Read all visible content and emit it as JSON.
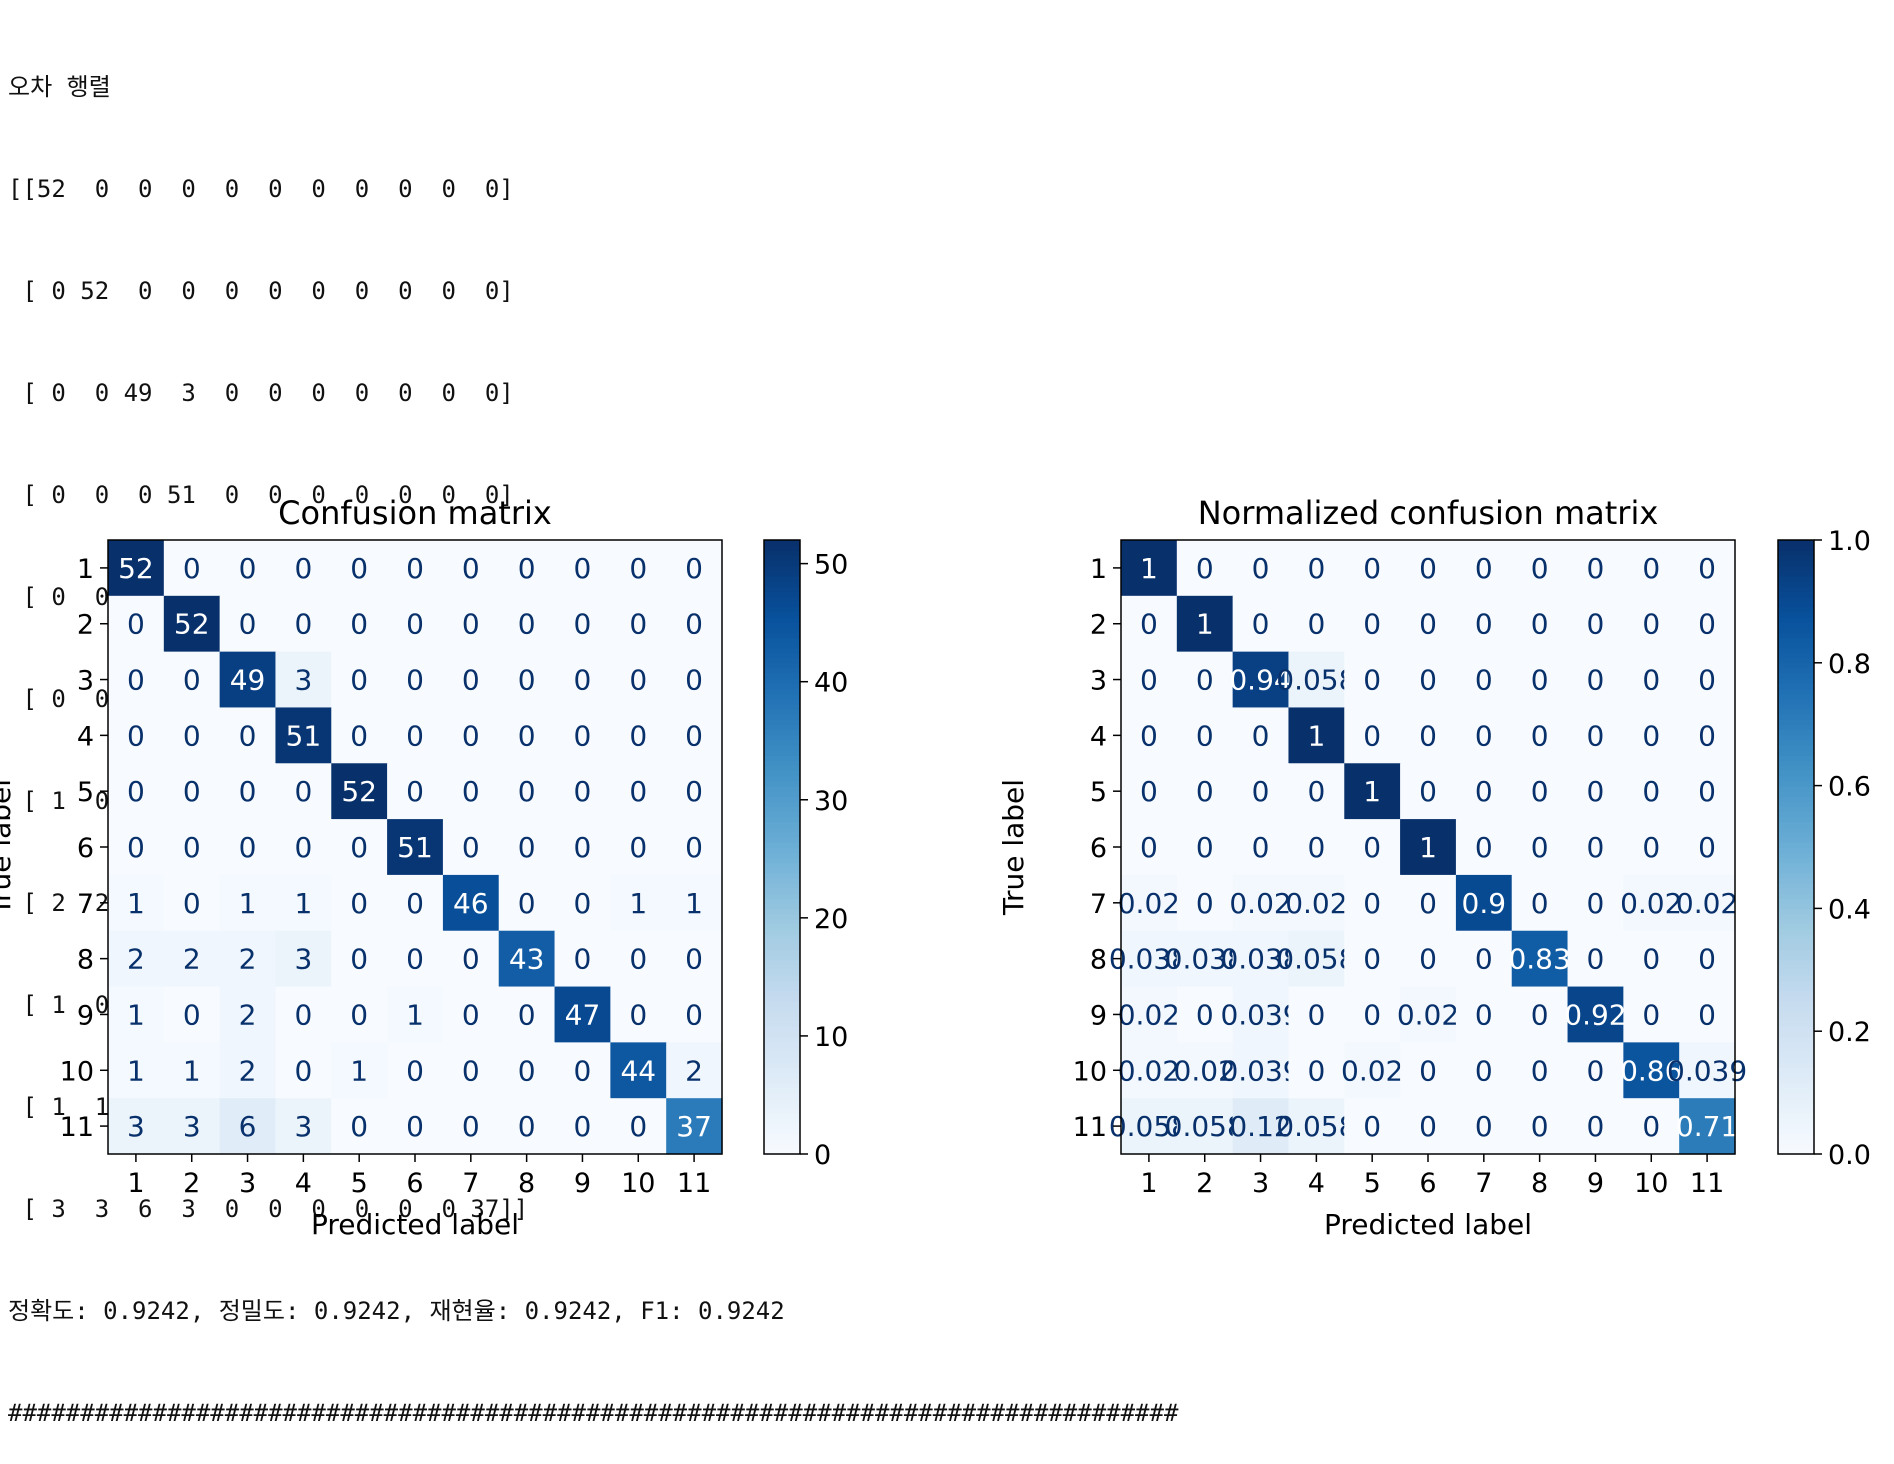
{
  "console": {
    "heading": "오차 행렬",
    "matrix_lines": [
      "[[52  0  0  0  0  0  0  0  0  0  0]",
      " [ 0 52  0  0  0  0  0  0  0  0  0]",
      " [ 0  0 49  3  0  0  0  0  0  0  0]",
      " [ 0  0  0 51  0  0  0  0  0  0  0]",
      " [ 0  0  0  0 52  0  0  0  0  0  0]",
      " [ 0  0  0  0  0 51  0  0  0  0  0]",
      " [ 1  0  1  1  0  0 46  0  0  1  1]",
      " [ 2  2  2  3  0  0  0 43  0  0  0]",
      " [ 1  0  2  0  0  1  0  0 47  0  0]",
      " [ 1  1  2  0  1  0  0  0  0 44  2]",
      " [ 3  3  6  3  0  0  0  0  0  0 37]]"
    ],
    "metrics_line": "정확도: 0.9242, 정밀도: 0.9242, 재현율: 0.9242, F1: 0.9242",
    "separator": "#################################################################################"
  },
  "chart_data": [
    {
      "type": "heatmap",
      "title": "Confusion matrix",
      "xlabel": "Predicted label",
      "ylabel": "True label",
      "x_categories": [
        "1",
        "2",
        "3",
        "4",
        "5",
        "6",
        "7",
        "8",
        "9",
        "10",
        "11"
      ],
      "y_categories": [
        "1",
        "2",
        "3",
        "4",
        "5",
        "6",
        "7",
        "8",
        "9",
        "10",
        "11"
      ],
      "colormap": "Blues",
      "colorbar_range": [
        0,
        52
      ],
      "colorbar_ticks": [
        0,
        10,
        20,
        30,
        40,
        50
      ],
      "colorbar_tick_labels": [
        "0",
        "10",
        "20",
        "30",
        "40",
        "50"
      ],
      "values": [
        [
          52,
          0,
          0,
          0,
          0,
          0,
          0,
          0,
          0,
          0,
          0
        ],
        [
          0,
          52,
          0,
          0,
          0,
          0,
          0,
          0,
          0,
          0,
          0
        ],
        [
          0,
          0,
          49,
          3,
          0,
          0,
          0,
          0,
          0,
          0,
          0
        ],
        [
          0,
          0,
          0,
          51,
          0,
          0,
          0,
          0,
          0,
          0,
          0
        ],
        [
          0,
          0,
          0,
          0,
          52,
          0,
          0,
          0,
          0,
          0,
          0
        ],
        [
          0,
          0,
          0,
          0,
          0,
          51,
          0,
          0,
          0,
          0,
          0
        ],
        [
          1,
          0,
          1,
          1,
          0,
          0,
          46,
          0,
          0,
          1,
          1
        ],
        [
          2,
          2,
          2,
          3,
          0,
          0,
          0,
          43,
          0,
          0,
          0
        ],
        [
          1,
          0,
          2,
          0,
          0,
          1,
          0,
          0,
          47,
          0,
          0
        ],
        [
          1,
          1,
          2,
          0,
          1,
          0,
          0,
          0,
          0,
          44,
          2
        ],
        [
          3,
          3,
          6,
          3,
          0,
          0,
          0,
          0,
          0,
          0,
          37
        ]
      ],
      "cell_labels": [
        [
          "52",
          "0",
          "0",
          "0",
          "0",
          "0",
          "0",
          "0",
          "0",
          "0",
          "0"
        ],
        [
          "0",
          "52",
          "0",
          "0",
          "0",
          "0",
          "0",
          "0",
          "0",
          "0",
          "0"
        ],
        [
          "0",
          "0",
          "49",
          "3",
          "0",
          "0",
          "0",
          "0",
          "0",
          "0",
          "0"
        ],
        [
          "0",
          "0",
          "0",
          "51",
          "0",
          "0",
          "0",
          "0",
          "0",
          "0",
          "0"
        ],
        [
          "0",
          "0",
          "0",
          "0",
          "52",
          "0",
          "0",
          "0",
          "0",
          "0",
          "0"
        ],
        [
          "0",
          "0",
          "0",
          "0",
          "0",
          "51",
          "0",
          "0",
          "0",
          "0",
          "0"
        ],
        [
          "1",
          "0",
          "1",
          "1",
          "0",
          "0",
          "46",
          "0",
          "0",
          "1",
          "1"
        ],
        [
          "2",
          "2",
          "2",
          "3",
          "0",
          "0",
          "0",
          "43",
          "0",
          "0",
          "0"
        ],
        [
          "1",
          "0",
          "2",
          "0",
          "0",
          "1",
          "0",
          "0",
          "47",
          "0",
          "0"
        ],
        [
          "1",
          "1",
          "2",
          "0",
          "1",
          "0",
          "0",
          "0",
          "0",
          "44",
          "2"
        ],
        [
          "3",
          "3",
          "6",
          "3",
          "0",
          "0",
          "0",
          "0",
          "0",
          "0",
          "37"
        ]
      ]
    },
    {
      "type": "heatmap",
      "title": "Normalized confusion matrix",
      "xlabel": "Predicted label",
      "ylabel": "True label",
      "x_categories": [
        "1",
        "2",
        "3",
        "4",
        "5",
        "6",
        "7",
        "8",
        "9",
        "10",
        "11"
      ],
      "y_categories": [
        "1",
        "2",
        "3",
        "4",
        "5",
        "6",
        "7",
        "8",
        "9",
        "10",
        "11"
      ],
      "colormap": "Blues",
      "colorbar_range": [
        0,
        1
      ],
      "colorbar_ticks": [
        0,
        0.2,
        0.4,
        0.6,
        0.8,
        1.0
      ],
      "colorbar_tick_labels": [
        "0.0",
        "0.2",
        "0.4",
        "0.6",
        "0.8",
        "1.0"
      ],
      "values": [
        [
          1,
          0,
          0,
          0,
          0,
          0,
          0,
          0,
          0,
          0,
          0
        ],
        [
          0,
          1,
          0,
          0,
          0,
          0,
          0,
          0,
          0,
          0,
          0
        ],
        [
          0,
          0,
          0.94,
          0.058,
          0,
          0,
          0,
          0,
          0,
          0,
          0
        ],
        [
          0,
          0,
          0,
          1,
          0,
          0,
          0,
          0,
          0,
          0,
          0
        ],
        [
          0,
          0,
          0,
          0,
          1,
          0,
          0,
          0,
          0,
          0,
          0
        ],
        [
          0,
          0,
          0,
          0,
          0,
          1,
          0,
          0,
          0,
          0,
          0
        ],
        [
          0.02,
          0,
          0.02,
          0.02,
          0,
          0,
          0.9,
          0,
          0,
          0.02,
          0.02
        ],
        [
          0.038,
          0.038,
          0.038,
          0.058,
          0,
          0,
          0,
          0.83,
          0,
          0,
          0
        ],
        [
          0.02,
          0,
          0.039,
          0,
          0,
          0.02,
          0,
          0,
          0.92,
          0,
          0
        ],
        [
          0.02,
          0.02,
          0.039,
          0,
          0.02,
          0,
          0,
          0,
          0,
          0.86,
          0.039
        ],
        [
          0.058,
          0.058,
          0.12,
          0.058,
          0,
          0,
          0,
          0,
          0,
          0,
          0.71
        ]
      ],
      "cell_labels": [
        [
          "1",
          "0",
          "0",
          "0",
          "0",
          "0",
          "0",
          "0",
          "0",
          "0",
          "0"
        ],
        [
          "0",
          "1",
          "0",
          "0",
          "0",
          "0",
          "0",
          "0",
          "0",
          "0",
          "0"
        ],
        [
          "0",
          "0",
          "0.94",
          "0.058",
          "0",
          "0",
          "0",
          "0",
          "0",
          "0",
          "0"
        ],
        [
          "0",
          "0",
          "0",
          "1",
          "0",
          "0",
          "0",
          "0",
          "0",
          "0",
          "0"
        ],
        [
          "0",
          "0",
          "0",
          "0",
          "1",
          "0",
          "0",
          "0",
          "0",
          "0",
          "0"
        ],
        [
          "0",
          "0",
          "0",
          "0",
          "0",
          "1",
          "0",
          "0",
          "0",
          "0",
          "0"
        ],
        [
          "0.02",
          "0",
          "0.02",
          "0.02",
          "0",
          "0",
          "0.9",
          "0",
          "0",
          "0.02",
          "0.02"
        ],
        [
          "0.038",
          "0.038",
          "0.038",
          "0.058",
          "0",
          "0",
          "0",
          "0.83",
          "0",
          "0",
          "0"
        ],
        [
          "0.02",
          "0",
          "0.039",
          "0",
          "0",
          "0.02",
          "0",
          "0",
          "0.92",
          "0",
          "0"
        ],
        [
          "0.02",
          "0.02",
          "0.039",
          "0",
          "0.02",
          "0",
          "0",
          "0",
          "0",
          "0.86",
          "0.039"
        ],
        [
          "0.058",
          "0.058",
          "0.12",
          "0.058",
          "0",
          "0",
          "0",
          "0",
          "0",
          "0",
          "0.71"
        ]
      ]
    }
  ]
}
